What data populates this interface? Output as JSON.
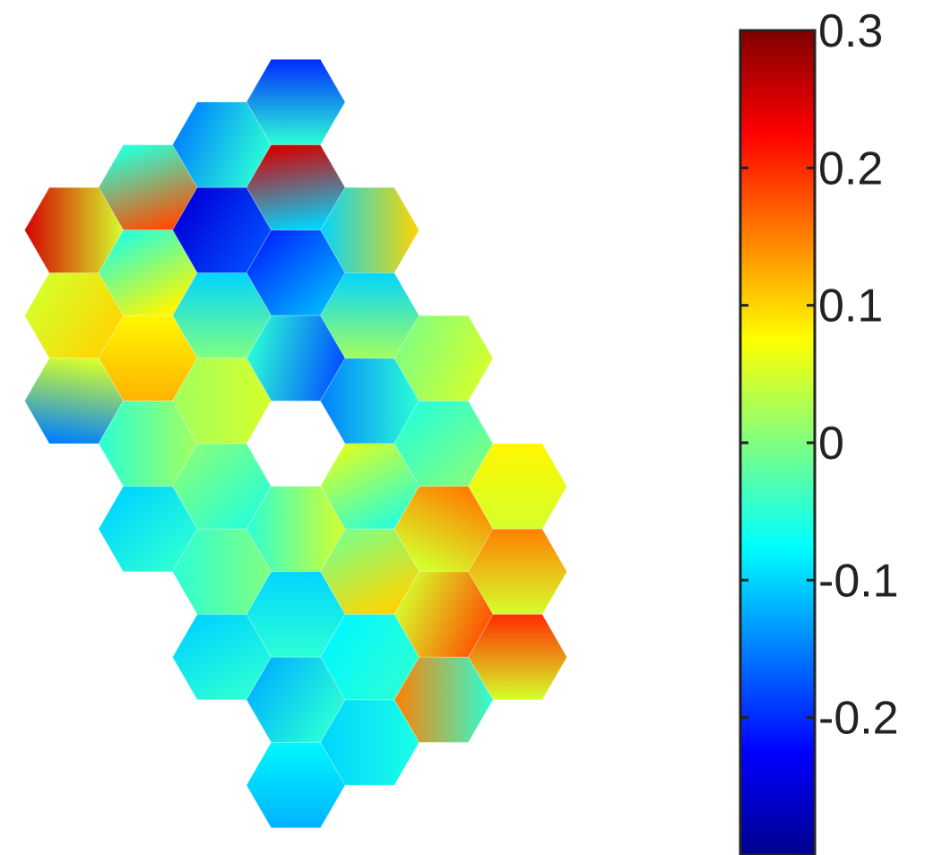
{
  "chart_data": {
    "type": "heatmap",
    "title": "",
    "xlabel": "",
    "ylabel": "",
    "grid": false,
    "colormap": "jet",
    "colormap_stops": [
      "#00008f",
      "#0000ff",
      "#0080ff",
      "#00ffff",
      "#80ff80",
      "#ffff00",
      "#ff8000",
      "#ff0000",
      "#800000"
    ],
    "colorbar": {
      "position": "right",
      "range": [
        -0.3,
        0.3
      ],
      "ticks": [
        -0.2,
        -0.1,
        0,
        0.1,
        0.2,
        0.3
      ],
      "tick_labels": [
        "-0.2",
        "-0.1",
        "0",
        "0.1",
        "0.2",
        "0.3"
      ]
    },
    "segments": [
      {
        "q": 0,
        "r": -4,
        "a": -0.2,
        "b": -0.05,
        "angle": 90
      },
      {
        "q": -1,
        "r": -3,
        "a": -0.15,
        "b": -0.05,
        "angle": 20
      },
      {
        "q": 0,
        "r": -3,
        "a": 0.25,
        "b": -0.1,
        "angle": 80
      },
      {
        "q": 1,
        "r": -3,
        "a": -0.1,
        "b": 0.1,
        "angle": 0
      },
      {
        "q": -2,
        "r": -2,
        "a": -0.05,
        "b": 0.18,
        "angle": 70
      },
      {
        "q": -1,
        "r": -2,
        "a": -0.25,
        "b": -0.18,
        "angle": 30
      },
      {
        "q": 0,
        "r": -2,
        "a": -0.2,
        "b": -0.12,
        "angle": 45
      },
      {
        "q": 1,
        "r": -2,
        "a": -0.1,
        "b": 0.02,
        "angle": 90
      },
      {
        "q": 2,
        "r": -2,
        "a": 0.0,
        "b": 0.05,
        "angle": 20
      },
      {
        "q": -3,
        "r": -1,
        "a": 0.25,
        "b": 0.05,
        "angle": 0
      },
      {
        "q": -2,
        "r": -1,
        "a": -0.05,
        "b": 0.08,
        "angle": 60
      },
      {
        "q": -1,
        "r": -1,
        "a": -0.1,
        "b": 0.0,
        "angle": 90
      },
      {
        "q": 0,
        "r": -1,
        "a": -0.05,
        "b": -0.18,
        "angle": 10
      },
      {
        "q": 1,
        "r": -1,
        "a": -0.15,
        "b": -0.05,
        "angle": 0
      },
      {
        "q": 2,
        "r": -1,
        "a": -0.05,
        "b": 0.0,
        "angle": 45
      },
      {
        "q": 3,
        "r": -1,
        "a": 0.08,
        "b": 0.05,
        "angle": 90
      },
      {
        "q": -3,
        "r": 0,
        "a": 0.05,
        "b": 0.1,
        "angle": 30
      },
      {
        "q": -2,
        "r": 0,
        "a": 0.08,
        "b": 0.12,
        "angle": 90
      },
      {
        "q": -1,
        "r": 0,
        "a": 0.02,
        "b": 0.05,
        "angle": 0
      },
      {
        "q": 1,
        "r": 0,
        "a": 0.05,
        "b": -0.05,
        "angle": 60
      },
      {
        "q": 2,
        "r": 0,
        "a": 0.15,
        "b": 0.05,
        "angle": 120
      },
      {
        "q": 3,
        "r": 0,
        "a": 0.15,
        "b": 0.05,
        "angle": 90
      },
      {
        "q": -3,
        "r": 1,
        "a": 0.05,
        "b": -0.15,
        "angle": 100
      },
      {
        "q": -2,
        "r": 1,
        "a": -0.05,
        "b": 0.02,
        "angle": 0
      },
      {
        "q": -1,
        "r": 1,
        "a": 0.0,
        "b": -0.05,
        "angle": 45
      },
      {
        "q": 0,
        "r": 1,
        "a": -0.05,
        "b": 0.05,
        "angle": 0
      },
      {
        "q": 1,
        "r": 1,
        "a": 0.0,
        "b": 0.1,
        "angle": 60
      },
      {
        "q": 2,
        "r": 1,
        "a": 0.05,
        "b": 0.18,
        "angle": 20
      },
      {
        "q": 3,
        "r": 1,
        "a": 0.2,
        "b": 0.05,
        "angle": 90
      },
      {
        "q": -2,
        "r": 2,
        "a": -0.1,
        "b": -0.05,
        "angle": 45
      },
      {
        "q": -1,
        "r": 2,
        "a": -0.05,
        "b": 0.0,
        "angle": 0
      },
      {
        "q": 0,
        "r": 2,
        "a": -0.1,
        "b": -0.05,
        "angle": 90
      },
      {
        "q": 1,
        "r": 2,
        "a": -0.08,
        "b": -0.05,
        "angle": 30
      },
      {
        "q": 2,
        "r": 2,
        "a": 0.15,
        "b": -0.05,
        "angle": 0
      },
      {
        "q": -1,
        "r": 3,
        "a": -0.1,
        "b": -0.05,
        "angle": 60
      },
      {
        "q": 0,
        "r": 3,
        "a": -0.12,
        "b": -0.05,
        "angle": 30
      },
      {
        "q": 1,
        "r": 3,
        "a": -0.1,
        "b": -0.06,
        "angle": 0
      },
      {
        "q": 0,
        "r": 4,
        "a": -0.08,
        "b": -0.12,
        "angle": 90
      }
    ]
  }
}
